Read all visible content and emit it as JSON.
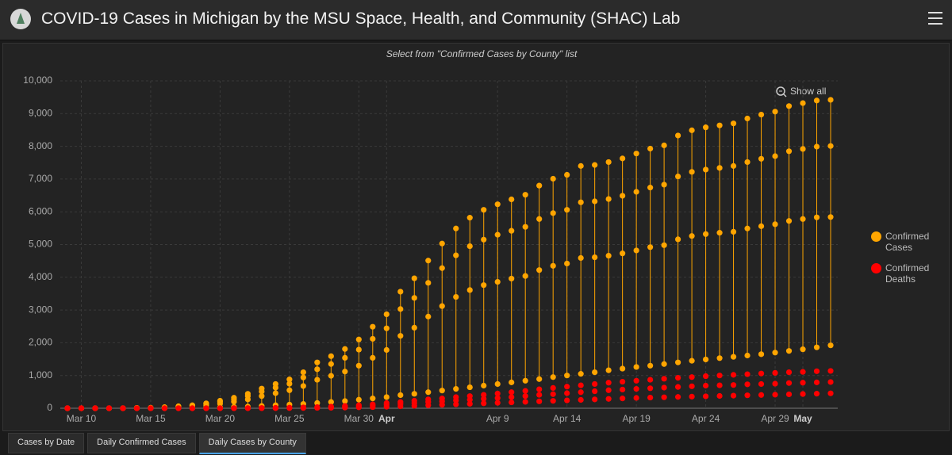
{
  "header": {
    "title": "COVID-19 Cases in Michigan by the MSU Space, Health, and Community (SHAC) Lab"
  },
  "tabs": [
    "Cases by Date",
    "Daily Confirmed Cases",
    "Daily Cases by County"
  ],
  "chart_data": {
    "type": "scatter",
    "subtitle": "Select from \"Confirmed Cases by County\" list",
    "reset_button": "Show all",
    "x": [
      "Mar 9",
      "Mar 10",
      "Mar 11",
      "Mar 12",
      "Mar 13",
      "Mar 14",
      "Mar 15",
      "Mar 16",
      "Mar 17",
      "Mar 18",
      "Mar 19",
      "Mar 20",
      "Mar 21",
      "Mar 22",
      "Mar 23",
      "Mar 24",
      "Mar 25",
      "Mar 26",
      "Mar 27",
      "Mar 28",
      "Mar 29",
      "Mar 30",
      "Mar 31",
      "Apr 1",
      "Apr 2",
      "Apr 3",
      "Apr 4",
      "Apr 5",
      "Apr 6",
      "Apr 7",
      "Apr 8",
      "Apr 9",
      "Apr 10",
      "Apr 11",
      "Apr 12",
      "Apr 13",
      "Apr 14",
      "Apr 15",
      "Apr 16",
      "Apr 17",
      "Apr 18",
      "Apr 19",
      "Apr 20",
      "Apr 21",
      "Apr 22",
      "Apr 23",
      "Apr 24",
      "Apr 25",
      "Apr 26",
      "Apr 27",
      "Apr 28",
      "Apr 29",
      "Apr 30",
      "May 1",
      "May 2",
      "May 3"
    ],
    "xticks": [
      "Mar 10",
      "Mar 15",
      "Mar 20",
      "Mar 25",
      "Mar 30",
      {
        "value": "Apr 1",
        "label": "Apr"
      },
      "Apr 9",
      "Apr 14",
      "Apr 19",
      "Apr 24",
      "Apr 29",
      {
        "value": "May 1",
        "label": "May"
      }
    ],
    "ylim": [
      0,
      10000
    ],
    "yticks": [
      0,
      {
        "value": 1000,
        "label": "1,000"
      },
      {
        "value": 2000,
        "label": "2,000"
      },
      {
        "value": 3000,
        "label": "3,000"
      },
      {
        "value": 4000,
        "label": "4,000"
      },
      {
        "value": 5000,
        "label": "5,000"
      },
      {
        "value": 6000,
        "label": "6,000"
      },
      {
        "value": 7000,
        "label": "7,000"
      },
      {
        "value": 8000,
        "label": "8,000"
      },
      {
        "value": 9000,
        "label": "9,000"
      },
      {
        "value": 10000,
        "label": "10,000"
      }
    ],
    "grid": true,
    "legend": "right",
    "series": [
      {
        "name": "Confirmed Cases",
        "color": "#ffa500",
        "values": [
          [
            0,
            0,
            0,
            0,
            2,
            10,
            15,
            30,
            60,
            90,
            150,
            230,
            320,
            440,
            600,
            740,
            880,
            1100,
            1400,
            1590,
            1810,
            2100,
            2490,
            2870,
            3560,
            3970,
            4510,
            5030,
            5490,
            5820,
            6060,
            6230,
            6380,
            6520,
            6800,
            7010,
            7130,
            7400,
            7430,
            7520,
            7630,
            7780,
            7930,
            8030,
            8330,
            8490,
            8580,
            8640,
            8700,
            8850,
            8970,
            9060,
            9230,
            9320,
            9400,
            9420
          ],
          [
            0,
            0,
            0,
            0,
            0,
            10,
            10,
            30,
            50,
            80,
            130,
            200,
            270,
            370,
            510,
            630,
            750,
            940,
            1190,
            1350,
            1540,
            1790,
            2120,
            2440,
            3030,
            3370,
            3830,
            4280,
            4670,
            4950,
            5150,
            5300,
            5420,
            5540,
            5780,
            5960,
            6060,
            6290,
            6320,
            6390,
            6490,
            6610,
            6740,
            6830,
            7080,
            7220,
            7290,
            7340,
            7400,
            7520,
            7620,
            7700,
            7850,
            7920,
            7990,
            8010
          ],
          [
            0,
            0,
            0,
            0,
            0,
            5,
            10,
            20,
            40,
            60,
            90,
            140,
            200,
            270,
            370,
            460,
            550,
            680,
            870,
            990,
            1120,
            1300,
            1540,
            1780,
            2210,
            2460,
            2800,
            3120,
            3400,
            3610,
            3760,
            3860,
            3960,
            4040,
            4220,
            4350,
            4420,
            4590,
            4610,
            4660,
            4730,
            4820,
            4920,
            4980,
            5160,
            5260,
            5320,
            5360,
            5390,
            5490,
            5560,
            5620,
            5720,
            5780,
            5830,
            5840
          ],
          [
            0,
            0,
            0,
            0,
            0,
            0,
            2,
            5,
            10,
            15,
            20,
            30,
            40,
            50,
            70,
            90,
            110,
            130,
            160,
            190,
            220,
            260,
            300,
            340,
            400,
            440,
            490,
            540,
            590,
            640,
            690,
            740,
            790,
            840,
            890,
            950,
            1000,
            1050,
            1100,
            1160,
            1210,
            1260,
            1300,
            1350,
            1400,
            1450,
            1490,
            1530,
            1570,
            1610,
            1650,
            1700,
            1750,
            1800,
            1860,
            1920
          ]
        ]
      },
      {
        "name": "Confirmed Deaths",
        "color": "#ff0000",
        "values": [
          [
            0,
            0,
            0,
            0,
            0,
            0,
            0,
            0,
            0,
            0,
            0,
            1,
            2,
            4,
            8,
            12,
            18,
            25,
            35,
            50,
            70,
            90,
            120,
            160,
            190,
            230,
            270,
            300,
            340,
            370,
            410,
            450,
            490,
            530,
            580,
            620,
            660,
            700,
            740,
            780,
            810,
            840,
            870,
            900,
            930,
            950,
            980,
            1000,
            1020,
            1040,
            1060,
            1080,
            1100,
            1110,
            1130,
            1140
          ],
          [
            0,
            0,
            0,
            0,
            0,
            0,
            0,
            0,
            0,
            0,
            0,
            0,
            1,
            3,
            5,
            8,
            12,
            17,
            25,
            35,
            50,
            60,
            80,
            110,
            130,
            160,
            190,
            210,
            240,
            260,
            290,
            310,
            340,
            370,
            410,
            430,
            460,
            490,
            520,
            550,
            570,
            590,
            610,
            630,
            650,
            670,
            690,
            700,
            710,
            730,
            740,
            750,
            770,
            780,
            790,
            800
          ],
          [
            0,
            0,
            0,
            0,
            0,
            0,
            0,
            0,
            0,
            0,
            0,
            0,
            0,
            1,
            2,
            3,
            5,
            7,
            10,
            14,
            20,
            28,
            35,
            45,
            60,
            75,
            90,
            105,
            120,
            135,
            150,
            165,
            180,
            195,
            210,
            225,
            240,
            255,
            270,
            285,
            300,
            315,
            325,
            335,
            345,
            355,
            365,
            375,
            385,
            395,
            405,
            415,
            425,
            435,
            445,
            455
          ]
        ]
      }
    ]
  }
}
